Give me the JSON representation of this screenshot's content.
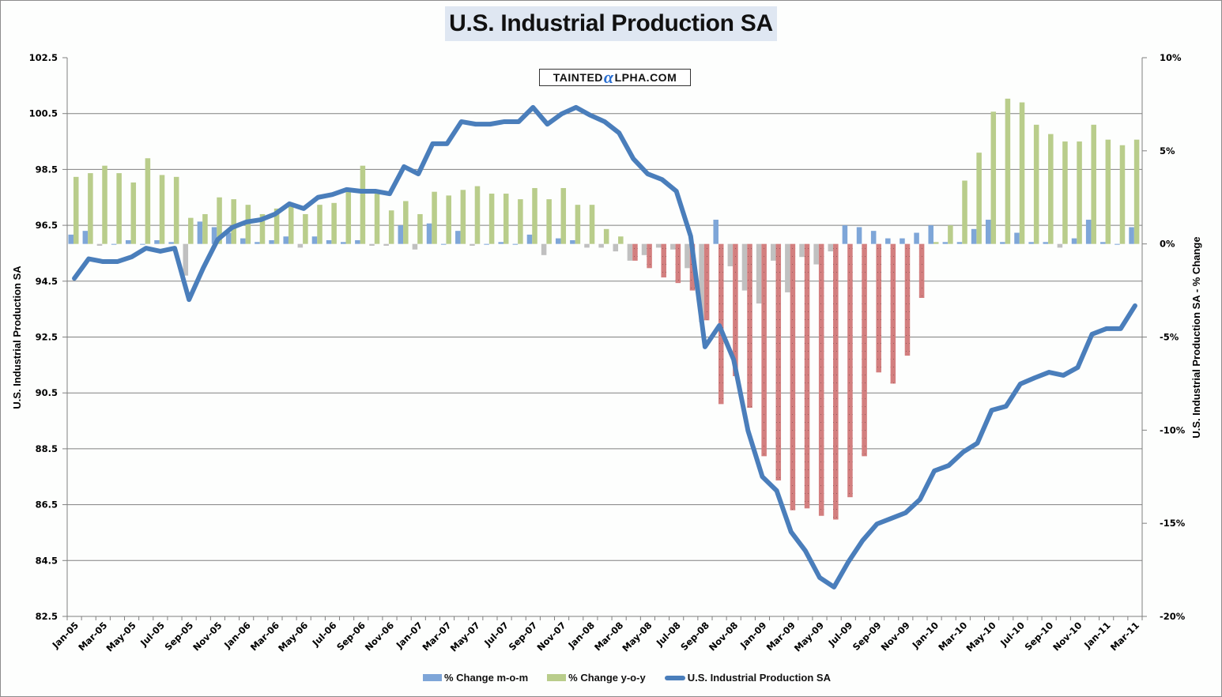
{
  "title": "U.S. Industrial Production SA",
  "watermark": {
    "prefix": "TAINTED",
    "alpha": "α",
    "suffix": "LPHA.COM"
  },
  "colors": {
    "line": "#4a7ebb",
    "mom_pos": "#7ea6d8",
    "mom_neg": "#c0c0c0",
    "yoy_pos": "#b9cd8b",
    "yoy_neg": "#d37f7f",
    "grid": "#808080",
    "title_bg": "#dfe7f2"
  },
  "legend": [
    {
      "label": "% Change m-o-m",
      "kind": "bar",
      "color": "#7ea6d8"
    },
    {
      "label": "% Change y-o-y",
      "kind": "bar",
      "color": "#b9cd8b"
    },
    {
      "label": "U.S. Industrial Production SA",
      "kind": "line",
      "color": "#4a7ebb"
    }
  ],
  "chart_data": {
    "type": "bar+line",
    "title": "U.S. Industrial Production SA",
    "xlabel": "",
    "ylabel": "U.S. Industrial Production SA",
    "y2label": "U.S. Industrial Production SA - % Change",
    "ylim": [
      82.5,
      102.5
    ],
    "y2lim": [
      -20,
      10
    ],
    "yticks": [
      "102.5",
      "100.5",
      "98.5",
      "96.5",
      "94.5",
      "92.5",
      "90.5",
      "88.5",
      "86.5",
      "84.5",
      "82.5"
    ],
    "y2ticks": [
      "10%",
      "5%",
      "0%",
      "-5%",
      "-10%",
      "-15%",
      "-20%"
    ],
    "grid": true,
    "legend_position": "bottom",
    "xtick_labels": [
      "Jan-05",
      "Mar-05",
      "May-05",
      "Jul-05",
      "Sep-05",
      "Nov-05",
      "Jan-06",
      "Mar-06",
      "May-06",
      "Jul-06",
      "Sep-06",
      "Nov-06",
      "Jan-07",
      "Mar-07",
      "May-07",
      "Jul-07",
      "Sep-07",
      "Nov-07",
      "Jan-08",
      "Mar-08",
      "May-08",
      "Jul-08",
      "Sep-08",
      "Nov-08",
      "Jan-09",
      "Mar-09",
      "May-09",
      "Jul-09",
      "Sep-09",
      "Nov-09",
      "Jan-10",
      "Mar-10",
      "May-10",
      "Jul-10",
      "Sep-10",
      "Nov-10",
      "Jan-11",
      "Mar-11"
    ],
    "categories": [
      "Jan-05",
      "Feb-05",
      "Mar-05",
      "Apr-05",
      "May-05",
      "Jun-05",
      "Jul-05",
      "Aug-05",
      "Sep-05",
      "Oct-05",
      "Nov-05",
      "Dec-05",
      "Jan-06",
      "Feb-06",
      "Mar-06",
      "Apr-06",
      "May-06",
      "Jun-06",
      "Jul-06",
      "Aug-06",
      "Sep-06",
      "Oct-06",
      "Nov-06",
      "Dec-06",
      "Jan-07",
      "Feb-07",
      "Mar-07",
      "Apr-07",
      "May-07",
      "Jun-07",
      "Jul-07",
      "Aug-07",
      "Sep-07",
      "Oct-07",
      "Nov-07",
      "Dec-07",
      "Jan-08",
      "Feb-08",
      "Mar-08",
      "Apr-08",
      "May-08",
      "Jun-08",
      "Jul-08",
      "Aug-08",
      "Sep-08",
      "Oct-08",
      "Nov-08",
      "Dec-08",
      "Jan-09",
      "Feb-09",
      "Mar-09",
      "Apr-09",
      "May-09",
      "Jun-09",
      "Jul-09",
      "Aug-09",
      "Sep-09",
      "Oct-09",
      "Nov-09",
      "Dec-09",
      "Jan-10",
      "Feb-10",
      "Mar-10",
      "Apr-10",
      "May-10",
      "Jun-10",
      "Jul-10",
      "Aug-10",
      "Sep-10",
      "Oct-10",
      "Nov-10",
      "Dec-10",
      "Jan-11",
      "Feb-11",
      "Mar-11"
    ],
    "series": [
      {
        "name": "% Change m-o-m",
        "type": "bar",
        "axis": "right",
        "values": [
          0.5,
          0.7,
          -0.1,
          0.0,
          0.2,
          0.0,
          0.2,
          0.1,
          -1.7,
          1.2,
          0.9,
          0.6,
          0.3,
          0.1,
          0.2,
          0.4,
          -0.2,
          0.4,
          0.2,
          0.1,
          0.2,
          -0.1,
          -0.1,
          1.0,
          -0.3,
          1.1,
          0.0,
          0.7,
          -0.1,
          0.0,
          0.1,
          0.0,
          0.5,
          -0.6,
          0.3,
          0.2,
          -0.2,
          -0.2,
          -0.4,
          -0.9,
          -0.6,
          -0.2,
          -0.3,
          -1.3,
          -4.2,
          1.3,
          -1.2,
          -2.5,
          -3.2,
          -0.9,
          -2.6,
          -0.7,
          -1.1,
          -0.4,
          1.0,
          0.9,
          0.7,
          0.3,
          0.3,
          0.6,
          1.0,
          0.1,
          0.1,
          0.8,
          1.3,
          0.1,
          0.6,
          0.1,
          0.1,
          -0.2,
          0.3,
          1.3,
          0.1,
          0.0,
          0.9
        ]
      },
      {
        "name": "% Change y-o-y",
        "type": "bar",
        "axis": "right",
        "values": [
          3.6,
          3.8,
          4.2,
          3.8,
          3.3,
          4.6,
          3.7,
          3.6,
          1.4,
          1.6,
          2.5,
          2.4,
          2.1,
          1.6,
          1.9,
          2.1,
          1.6,
          2.1,
          2.2,
          3.0,
          4.2,
          2.7,
          1.8,
          2.3,
          1.6,
          2.8,
          2.6,
          2.9,
          3.1,
          2.7,
          2.7,
          2.4,
          3.0,
          2.4,
          3.0,
          2.1,
          2.1,
          0.8,
          0.4,
          -0.9,
          -1.3,
          -1.8,
          -2.1,
          -2.5,
          -4.1,
          -8.6,
          -7.1,
          -8.8,
          -11.4,
          -12.7,
          -14.3,
          -14.2,
          -14.6,
          -14.8,
          -13.6,
          -11.4,
          -6.9,
          -7.5,
          -6.0,
          -2.9,
          0.1,
          1.0,
          3.4,
          4.9,
          7.1,
          7.8,
          7.6,
          6.4,
          5.9,
          5.5,
          5.5,
          6.4,
          5.6,
          5.3,
          5.6
        ]
      },
      {
        "name": "U.S. Industrial Production SA",
        "type": "line",
        "axis": "left",
        "values": [
          94.6,
          95.3,
          95.2,
          95.2,
          95.37,
          95.68,
          95.57,
          95.68,
          93.84,
          94.98,
          95.99,
          96.42,
          96.62,
          96.7,
          96.9,
          97.27,
          97.1,
          97.5,
          97.6,
          97.78,
          97.72,
          97.72,
          97.63,
          98.6,
          98.34,
          99.42,
          99.42,
          100.21,
          100.12,
          100.12,
          100.21,
          100.21,
          100.72,
          100.12,
          100.49,
          100.72,
          100.44,
          100.21,
          99.81,
          98.88,
          98.34,
          98.14,
          97.72,
          96.11,
          92.15,
          92.91,
          91.69,
          89.15,
          87.5,
          87.0,
          85.53,
          84.85,
          83.89,
          83.55,
          84.45,
          85.22,
          85.81,
          86.01,
          86.21,
          86.69,
          87.71,
          87.9,
          88.38,
          88.7,
          89.88,
          90.02,
          90.82,
          91.04,
          91.24,
          91.13,
          91.41,
          92.6,
          92.8,
          92.8,
          93.62
        ]
      }
    ]
  }
}
